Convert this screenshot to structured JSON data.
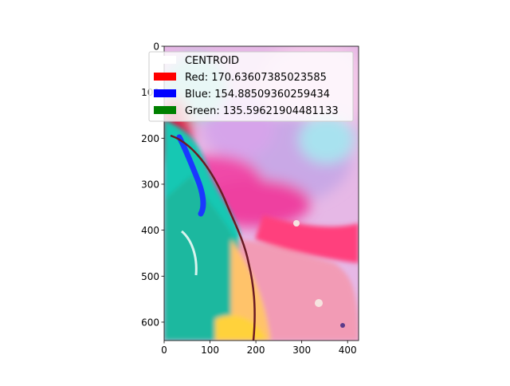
{
  "chart_data": {
    "type": "image",
    "xlim": [
      0,
      424
    ],
    "ylim": [
      640,
      0
    ],
    "x_ticks": [
      0,
      100,
      200,
      300,
      400
    ],
    "y_ticks": [
      0,
      100,
      200,
      300,
      400,
      500,
      600
    ],
    "legend_placement": "upper-left",
    "legend": [
      {
        "label": "CENTROID",
        "color": "#ffffff"
      },
      {
        "label": "Red: 170.63607385023585",
        "color": "#ff0000"
      },
      {
        "label": "Blue: 154.88509360259434",
        "color": "#0000ff"
      },
      {
        "label": "Green: 135.59621904481133",
        "color": "#008000"
      }
    ]
  }
}
